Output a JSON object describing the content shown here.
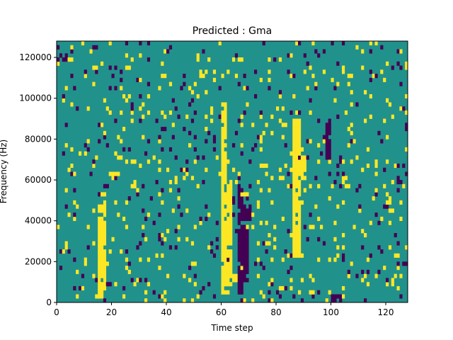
{
  "chart_data": {
    "type": "heatmap",
    "title": "Predicted : Gma",
    "xlabel": "Time step",
    "ylabel": "Frequency (Hz)",
    "xlim": [
      0,
      128
    ],
    "ylim": [
      0,
      128000
    ],
    "x_ticks": [
      "0",
      "20",
      "40",
      "60",
      "80",
      "100",
      "120"
    ],
    "y_ticks": [
      "0",
      "20000",
      "40000",
      "60000",
      "80000",
      "100000",
      "120000"
    ],
    "grid": false,
    "colormap": "viridis",
    "levels": {
      "background": 0.5,
      "high": 1.0,
      "low": 0.0
    },
    "colors": {
      "background": "#21918c",
      "high": "#fde725",
      "low": "#440154"
    },
    "n_time_steps": 128,
    "n_freq_bins": 64,
    "bands": [
      {
        "level": "high",
        "t0": 60,
        "t1": 62,
        "f0": 5000,
        "f1": 97000
      },
      {
        "level": "high",
        "t0": 62,
        "t1": 64,
        "f0": 8000,
        "f1": 60000
      },
      {
        "level": "high",
        "t0": 15,
        "t1": 18,
        "f0": 4000,
        "f1": 48000
      },
      {
        "level": "high",
        "t0": 86,
        "t1": 89,
        "f0": 23000,
        "f1": 90000
      },
      {
        "level": "high",
        "t0": 63,
        "t1": 66,
        "f0": 10000,
        "f1": 14000
      },
      {
        "level": "high",
        "t0": 89,
        "t1": 91,
        "f0": 60000,
        "f1": 72000
      },
      {
        "level": "low",
        "t0": 66,
        "t1": 68,
        "f0": 4000,
        "f1": 58000
      },
      {
        "level": "low",
        "t0": 68,
        "t1": 70,
        "f0": 10000,
        "f1": 36000
      },
      {
        "level": "low",
        "t0": 68,
        "t1": 71,
        "f0": 40000,
        "f1": 48000
      },
      {
        "level": "low",
        "t0": 100,
        "t1": 104,
        "f0": 0,
        "f1": 4000
      },
      {
        "level": "low",
        "t0": 98,
        "t1": 100,
        "f0": 70000,
        "f1": 88000
      },
      {
        "level": "low",
        "t0": 1,
        "t1": 4,
        "f0": 118000,
        "f1": 122000
      }
    ],
    "scattered_pixels": {
      "high_density": 0.05,
      "low_density": 0.04
    }
  }
}
